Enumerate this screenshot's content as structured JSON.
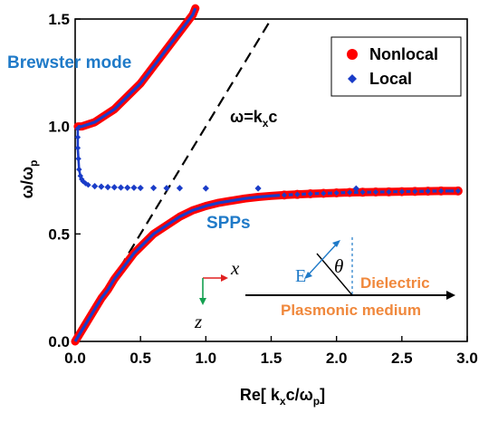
{
  "chart_data": {
    "type": "scatter",
    "xlabel": "Re[ k",
    "xlabel_sub1": "x",
    "xlabel_mid": "c/ω",
    "xlabel_sub2": "p",
    "xlabel_end": "]",
    "ylabel": "ω/ω",
    "ylabel_sub": "p",
    "xlim": [
      0,
      3.0
    ],
    "ylim": [
      0,
      1.5
    ],
    "xticks": [
      "0.0",
      "0.5",
      "1.0",
      "1.5",
      "2.0",
      "2.5",
      "3.0"
    ],
    "yticks": [
      "0.0",
      "0.5",
      "1.0",
      "1.5"
    ],
    "series": [
      {
        "name": "Nonlocal",
        "color": "#ff0000",
        "marker": "circle",
        "upper_branch": {
          "x": [
            0.02,
            0.05,
            0.1,
            0.15,
            0.2,
            0.25,
            0.3,
            0.35,
            0.4,
            0.45,
            0.5,
            0.55,
            0.6,
            0.65,
            0.7,
            0.75,
            0.8,
            0.85,
            0.9,
            0.92
          ],
          "y": [
            1.0,
            1.0,
            1.01,
            1.02,
            1.04,
            1.06,
            1.08,
            1.11,
            1.14,
            1.17,
            1.2,
            1.24,
            1.28,
            1.32,
            1.36,
            1.4,
            1.44,
            1.48,
            1.52,
            1.55
          ]
        },
        "lower_branch": {
          "x": [
            0.0,
            0.05,
            0.1,
            0.15,
            0.2,
            0.25,
            0.3,
            0.35,
            0.4,
            0.45,
            0.5,
            0.55,
            0.6,
            0.7,
            0.8,
            0.9,
            1.0,
            1.1,
            1.2,
            1.3,
            1.4,
            1.5,
            1.6,
            1.7,
            1.8,
            1.9,
            2.0,
            2.1,
            2.2,
            2.3,
            2.4,
            2.5,
            2.6,
            2.7,
            2.8,
            2.93
          ],
          "y": [
            0.0,
            0.05,
            0.1,
            0.15,
            0.2,
            0.24,
            0.29,
            0.33,
            0.37,
            0.41,
            0.44,
            0.47,
            0.5,
            0.54,
            0.58,
            0.61,
            0.63,
            0.645,
            0.655,
            0.665,
            0.672,
            0.677,
            0.681,
            0.684,
            0.687,
            0.689,
            0.691,
            0.693,
            0.694,
            0.695,
            0.696,
            0.697,
            0.698,
            0.699,
            0.7,
            0.7
          ]
        }
      },
      {
        "name": "Local",
        "color": "#1a3cc8",
        "marker": "diamond",
        "upper_branch": {
          "x": [
            0.02,
            0.05,
            0.1,
            0.15,
            0.2,
            0.25,
            0.3,
            0.35,
            0.4,
            0.45,
            0.5,
            0.55,
            0.6,
            0.65,
            0.7,
            0.75,
            0.8,
            0.85,
            0.9,
            0.92
          ],
          "y": [
            1.0,
            1.0,
            1.01,
            1.02,
            1.04,
            1.06,
            1.08,
            1.11,
            1.14,
            1.17,
            1.2,
            1.24,
            1.28,
            1.32,
            1.36,
            1.4,
            1.44,
            1.48,
            1.52,
            1.55
          ]
        },
        "lower_branch": {
          "x": [
            0.0,
            0.05,
            0.1,
            0.15,
            0.2,
            0.25,
            0.3,
            0.35,
            0.4,
            0.45,
            0.5,
            0.55,
            0.6,
            0.7,
            0.8,
            0.9,
            1.0,
            1.1,
            1.2,
            1.3,
            1.4,
            1.5,
            1.6,
            1.7,
            1.8,
            1.9,
            2.0,
            2.1,
            2.2,
            2.3,
            2.4,
            2.5,
            2.6,
            2.7,
            2.8,
            2.93
          ],
          "y": [
            0.0,
            0.05,
            0.1,
            0.15,
            0.2,
            0.24,
            0.29,
            0.33,
            0.37,
            0.41,
            0.44,
            0.47,
            0.5,
            0.54,
            0.58,
            0.61,
            0.63,
            0.645,
            0.655,
            0.665,
            0.672,
            0.677,
            0.681,
            0.684,
            0.687,
            0.689,
            0.691,
            0.693,
            0.694,
            0.695,
            0.696,
            0.697,
            0.698,
            0.699,
            0.7,
            0.7
          ]
        },
        "bend_branch": {
          "x": [
            0.02,
            0.02,
            0.02,
            0.025,
            0.03,
            0.04,
            0.05,
            0.06,
            0.08,
            0.1
          ],
          "y": [
            0.99,
            0.95,
            0.9,
            0.85,
            0.8,
            0.77,
            0.755,
            0.745,
            0.735,
            0.728
          ]
        },
        "flat_branch": {
          "x": [
            0.15,
            0.2,
            0.25,
            0.3,
            0.35,
            0.4,
            0.45,
            0.5,
            0.6,
            0.7,
            0.8,
            1.0,
            1.4,
            2.15
          ],
          "y": [
            0.722,
            0.72,
            0.718,
            0.717,
            0.716,
            0.715,
            0.715,
            0.714,
            0.714,
            0.713,
            0.713,
            0.712,
            0.712,
            0.711
          ]
        }
      }
    ],
    "light_line": {
      "label": "ω=k",
      "label_sub": "x",
      "label_end": "c",
      "x": [
        0,
        1.5
      ],
      "y": [
        0,
        1.5
      ],
      "style": "dashed"
    },
    "annotations": {
      "brewster": "Brewster mode",
      "spp": "SPPs",
      "dielectric": "Dielectric",
      "plasmonic": "Plasmonic medium",
      "x_axis": "x",
      "z_axis": "z",
      "field": "E",
      "angle": "θ"
    },
    "legend_position": "top-right",
    "grid": false
  },
  "colors": {
    "accent_blue": "#1f7ac8",
    "orange": "#f0883c",
    "axis_red": "#e02020",
    "axis_green": "#14a050"
  }
}
